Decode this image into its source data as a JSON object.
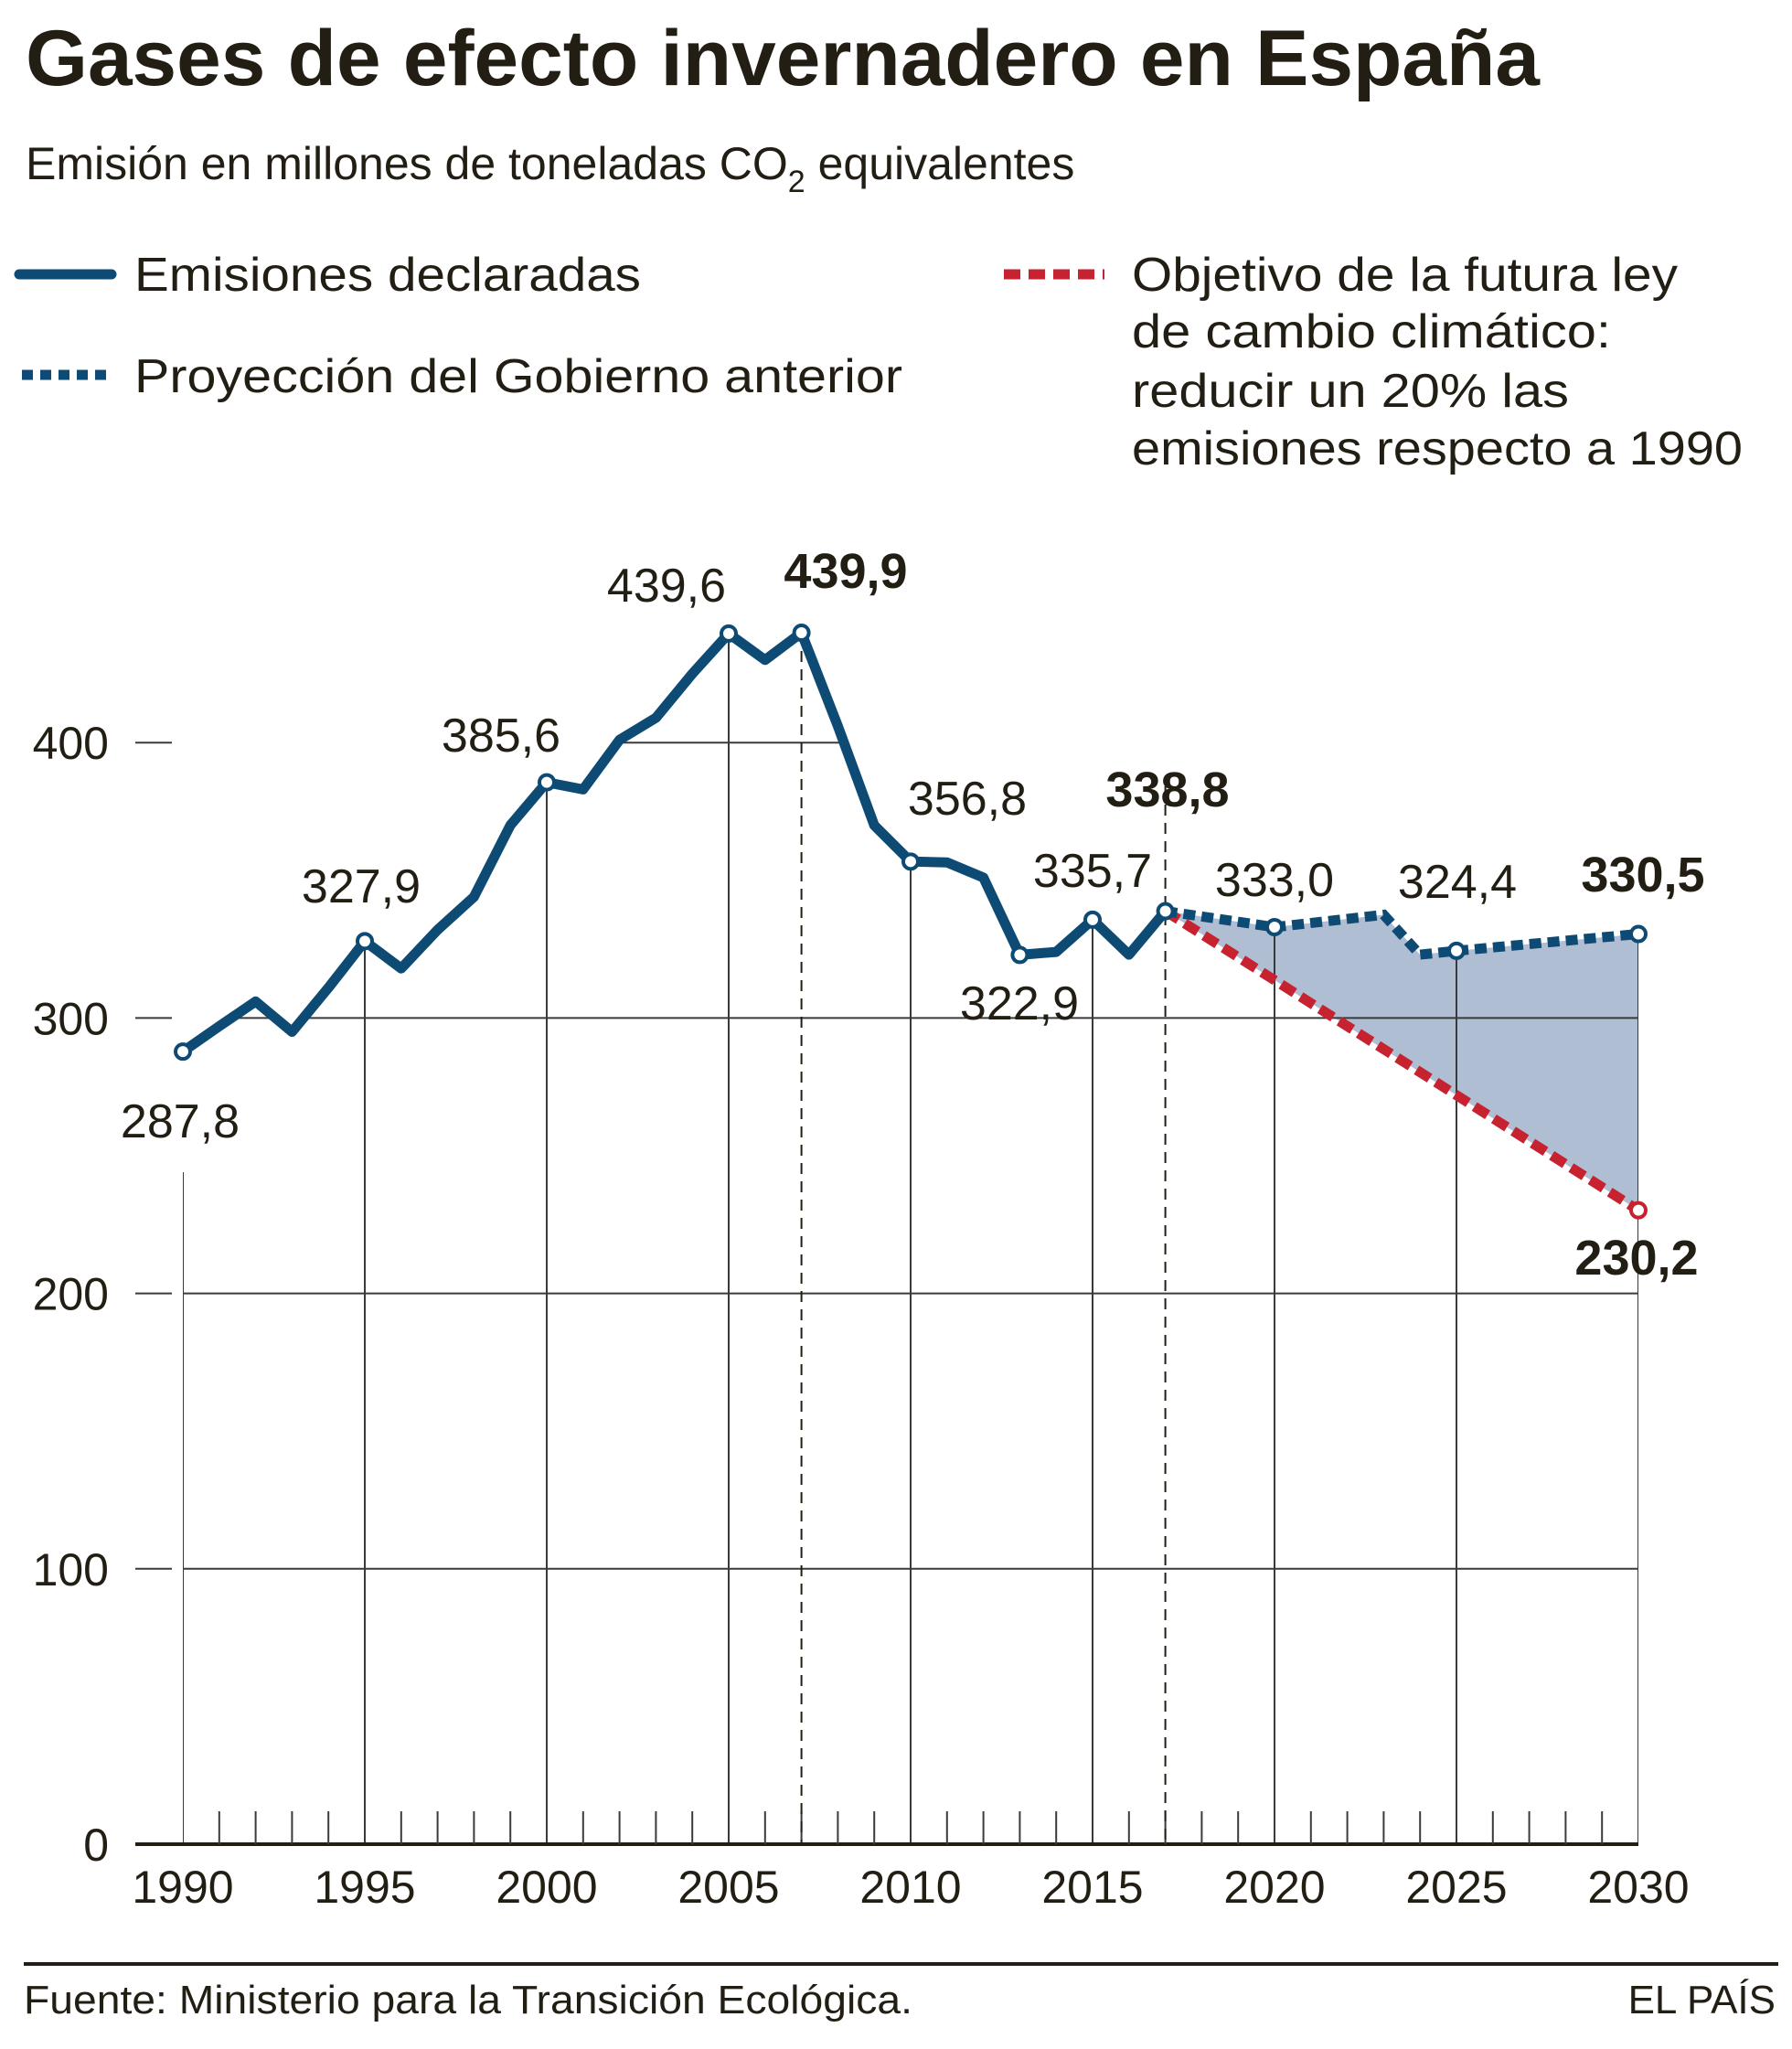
{
  "title": "Gases de efecto invernadero en España",
  "subtitle": {
    "main": "Emisión en millones de toneladas CO",
    "sub": "2",
    "tail": " equivalentes"
  },
  "legend": {
    "declared": "Emisiones declaradas",
    "projection": "Proyección del Gobierno anterior",
    "target": [
      "Objetivo de la futura ley",
      "de cambio climático:",
      "reducir un 20% las",
      "emisiones respecto a 1990"
    ]
  },
  "footer": {
    "source": "Fuente: Ministerio para la Transición Ecológica.",
    "brand": "EL PAÍS"
  },
  "colors": {
    "declared": "#0d4a74",
    "projection": "#0d4a74",
    "target": "#c62230",
    "gap_fill": "#afbed2",
    "grid": "#3a3a3a",
    "text": "#221e14"
  },
  "chart_data": {
    "type": "line",
    "title": "Gases de efecto invernadero en España",
    "ylabel": "",
    "xlim": [
      1990,
      2030
    ],
    "ylim": [
      0,
      450
    ],
    "x_ticks": [
      "1990",
      "1995",
      "2000",
      "2005",
      "2010",
      "2015",
      "2020",
      "2025",
      "2030"
    ],
    "y_ticks": [
      "0",
      "100",
      "200",
      "300",
      "400"
    ],
    "grid": true,
    "series": [
      {
        "name": "Emisiones declaradas",
        "style": "solid",
        "x": [
          1990,
          1991,
          1992,
          1993,
          1994,
          1995,
          1996,
          1997,
          1998,
          1999,
          2000,
          2001,
          2002,
          2003,
          2004,
          2005,
          2006,
          2007,
          2008,
          2009,
          2010,
          2011,
          2012,
          2013,
          2014,
          2015,
          2016,
          2017
        ],
        "y": [
          287.8,
          297,
          306,
          295,
          311,
          327.9,
          318,
          332,
          344,
          370,
          385.6,
          383,
          401,
          409,
          425,
          439.6,
          430,
          439.9,
          406,
          370,
          356.8,
          356.5,
          351,
          322.9,
          324,
          335.7,
          323,
          338.8
        ]
      },
      {
        "name": "Proyección del Gobierno anterior",
        "style": "dotted",
        "x": [
          2017,
          2020,
          2023,
          2024,
          2025,
          2030
        ],
        "y": [
          338.8,
          333.0,
          337.5,
          323,
          324.4,
          330.5
        ]
      },
      {
        "name": "Objetivo de la futura ley de cambio climático",
        "style": "dashed",
        "x": [
          2017,
          2030
        ],
        "y": [
          338.8,
          230.2
        ]
      }
    ],
    "data_labels": [
      {
        "text": "287,8",
        "bold": false
      },
      {
        "text": "327,9",
        "bold": false
      },
      {
        "text": "385,6",
        "bold": false
      },
      {
        "text": "439,6",
        "bold": false
      },
      {
        "text": "439,9",
        "bold": true
      },
      {
        "text": "356,8",
        "bold": false
      },
      {
        "text": "338,8",
        "bold": true
      },
      {
        "text": "335,7",
        "bold": false
      },
      {
        "text": "322,9",
        "bold": false
      },
      {
        "text": "333,0",
        "bold": false
      },
      {
        "text": "324,4",
        "bold": false
      },
      {
        "text": "330,5",
        "bold": true
      },
      {
        "text": "230,2",
        "bold": true
      }
    ]
  }
}
